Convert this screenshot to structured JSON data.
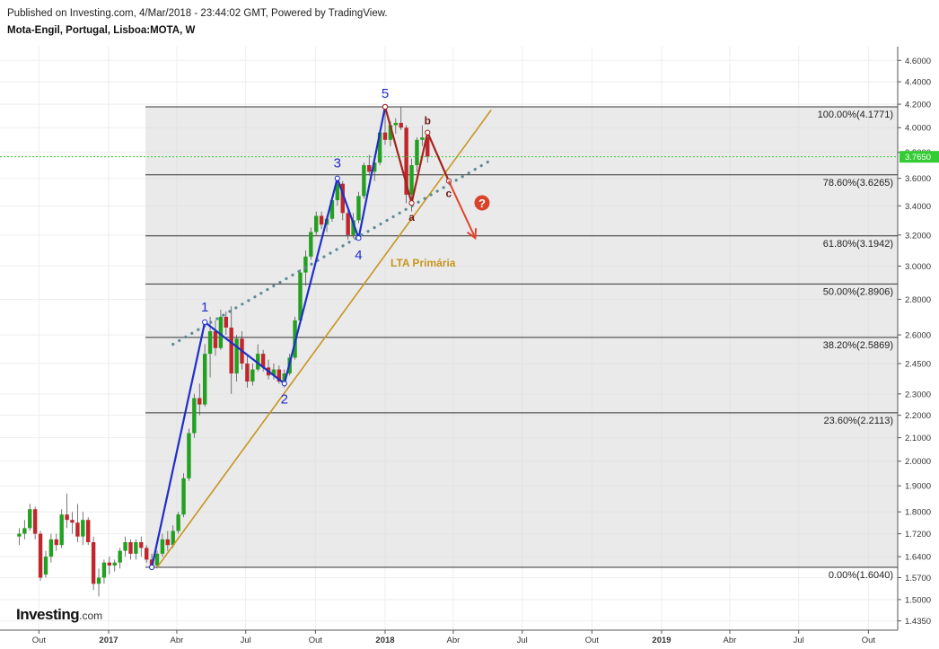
{
  "header": {
    "published": "Published on Investing.com, 4/Mar/2018 - 23:44:02 GMT, Powered by TradingView.",
    "symbol": "Mota-Engil, Portugal, Lisboa:MOTA, W"
  },
  "logo": {
    "main": "Investing",
    "suffix": ".com"
  },
  "chart_data": {
    "type": "candlestick",
    "title": "Mota-Engil, Portugal, Lisboa:MOTA, W",
    "y_axis": {
      "scale": "log",
      "ticks": [
        "4.6000",
        "4.4000",
        "4.2000",
        "4.0000",
        "3.8000",
        "3.6000",
        "3.4000",
        "3.2000",
        "3.0000",
        "2.8000",
        "2.6000",
        "2.4500",
        "2.3000",
        "2.2000",
        "2.1000",
        "2.0000",
        "1.9000",
        "1.8000",
        "1.7200",
        "1.6400",
        "1.5700",
        "1.5000",
        "1.4350"
      ],
      "current_price": "3.7650"
    },
    "x_axis": {
      "ticks": [
        "Out",
        "2017",
        "Abr",
        "Jul",
        "Out",
        "2018",
        "Abr",
        "Jul",
        "Out",
        "2019",
        "Abr",
        "Jul",
        "Out"
      ]
    },
    "fibonacci": [
      {
        "label": "100.00%(4.1771)",
        "value": 4.1771
      },
      {
        "label": "78.60%(3.6265)",
        "value": 3.6265
      },
      {
        "label": "61.80%(3.1942)",
        "value": 3.1942
      },
      {
        "label": "50.00%(2.8906)",
        "value": 2.8906
      },
      {
        "label": "38.20%(2.5869)",
        "value": 2.5869
      },
      {
        "label": "23.60%(2.2113)",
        "value": 2.2113
      },
      {
        "label": "0.00%(1.6040)",
        "value": 1.604
      }
    ],
    "elliott_impulse": [
      {
        "label": "",
        "x": "2017-02-27",
        "y": 1.604
      },
      {
        "label": "1",
        "x": "2017-05-08",
        "y": 2.67
      },
      {
        "label": "2",
        "x": "2017-08-21",
        "y": 2.35
      },
      {
        "label": "3",
        "x": "2017-10-30",
        "y": 3.6
      },
      {
        "label": "4",
        "x": "2017-11-27",
        "y": 3.18
      },
      {
        "label": "5",
        "x": "2018-01-01",
        "y": 4.1771
      }
    ],
    "elliott_correction": [
      {
        "label": "",
        "x": "2018-01-01",
        "y": 4.1771
      },
      {
        "label": "a",
        "x": "2018-02-05",
        "y": 3.42
      },
      {
        "label": "b",
        "x": "2018-02-26",
        "y": 3.96
      },
      {
        "label": "c",
        "x": "2018-03-26",
        "y": 3.58
      }
    ],
    "projection_arrow": [
      {
        "x": "2018-03-26",
        "y": 3.58
      },
      {
        "x": "2018-04-30",
        "y": 3.18
      }
    ],
    "question_mark": "?",
    "trendline_primary": {
      "label": "LTA Primária",
      "points": [
        {
          "x": "2017-03-06",
          "y": 1.604
        },
        {
          "x": "2018-05-21",
          "y": 4.15
        }
      ]
    },
    "trendline_dotted": {
      "points": [
        {
          "x": "2017-03-27",
          "y": 2.55
        },
        {
          "x": "2018-05-21",
          "y": 3.74
        }
      ]
    },
    "candles": [
      {
        "d": "2016-09-05",
        "o": 1.71,
        "h": 1.74,
        "l": 1.68,
        "c": 1.72
      },
      {
        "d": "2016-09-12",
        "o": 1.72,
        "h": 1.77,
        "l": 1.7,
        "c": 1.74
      },
      {
        "d": "2016-09-19",
        "o": 1.74,
        "h": 1.83,
        "l": 1.73,
        "c": 1.81
      },
      {
        "d": "2016-09-26",
        "o": 1.81,
        "h": 1.82,
        "l": 1.7,
        "c": 1.72
      },
      {
        "d": "2016-10-03",
        "o": 1.72,
        "h": 1.73,
        "l": 1.56,
        "c": 1.57
      },
      {
        "d": "2016-10-10",
        "o": 1.58,
        "h": 1.66,
        "l": 1.57,
        "c": 1.64
      },
      {
        "d": "2016-10-17",
        "o": 1.64,
        "h": 1.72,
        "l": 1.62,
        "c": 1.7
      },
      {
        "d": "2016-10-24",
        "o": 1.7,
        "h": 1.72,
        "l": 1.66,
        "c": 1.68
      },
      {
        "d": "2016-10-31",
        "o": 1.68,
        "h": 1.81,
        "l": 1.67,
        "c": 1.79
      },
      {
        "d": "2016-11-07",
        "o": 1.79,
        "h": 1.87,
        "l": 1.74,
        "c": 1.77
      },
      {
        "d": "2016-11-14",
        "o": 1.77,
        "h": 1.8,
        "l": 1.72,
        "c": 1.76
      },
      {
        "d": "2016-11-21",
        "o": 1.76,
        "h": 1.83,
        "l": 1.69,
        "c": 1.71
      },
      {
        "d": "2016-11-28",
        "o": 1.71,
        "h": 1.8,
        "l": 1.68,
        "c": 1.77
      },
      {
        "d": "2016-12-05",
        "o": 1.77,
        "h": 1.78,
        "l": 1.68,
        "c": 1.69
      },
      {
        "d": "2016-12-12",
        "o": 1.69,
        "h": 1.71,
        "l": 1.53,
        "c": 1.55
      },
      {
        "d": "2016-12-19",
        "o": 1.55,
        "h": 1.6,
        "l": 1.51,
        "c": 1.57
      },
      {
        "d": "2016-12-26",
        "o": 1.57,
        "h": 1.63,
        "l": 1.55,
        "c": 1.62
      },
      {
        "d": "2017-01-02",
        "o": 1.62,
        "h": 1.64,
        "l": 1.58,
        "c": 1.61
      },
      {
        "d": "2017-01-09",
        "o": 1.61,
        "h": 1.63,
        "l": 1.59,
        "c": 1.62
      },
      {
        "d": "2017-01-16",
        "o": 1.62,
        "h": 1.67,
        "l": 1.6,
        "c": 1.66
      },
      {
        "d": "2017-01-23",
        "o": 1.66,
        "h": 1.71,
        "l": 1.64,
        "c": 1.69
      },
      {
        "d": "2017-01-30",
        "o": 1.69,
        "h": 1.7,
        "l": 1.63,
        "c": 1.65
      },
      {
        "d": "2017-02-06",
        "o": 1.65,
        "h": 1.7,
        "l": 1.63,
        "c": 1.69
      },
      {
        "d": "2017-02-13",
        "o": 1.69,
        "h": 1.71,
        "l": 1.64,
        "c": 1.67
      },
      {
        "d": "2017-02-20",
        "o": 1.67,
        "h": 1.68,
        "l": 1.62,
        "c": 1.63
      },
      {
        "d": "2017-02-27",
        "o": 1.63,
        "h": 1.65,
        "l": 1.6,
        "c": 1.61
      },
      {
        "d": "2017-03-06",
        "o": 1.61,
        "h": 1.66,
        "l": 1.6,
        "c": 1.65
      },
      {
        "d": "2017-03-13",
        "o": 1.65,
        "h": 1.72,
        "l": 1.64,
        "c": 1.7
      },
      {
        "d": "2017-03-20",
        "o": 1.7,
        "h": 1.73,
        "l": 1.66,
        "c": 1.68
      },
      {
        "d": "2017-03-27",
        "o": 1.68,
        "h": 1.75,
        "l": 1.67,
        "c": 1.73
      },
      {
        "d": "2017-04-03",
        "o": 1.73,
        "h": 1.8,
        "l": 1.72,
        "c": 1.79
      },
      {
        "d": "2017-04-10",
        "o": 1.79,
        "h": 1.95,
        "l": 1.78,
        "c": 1.93
      },
      {
        "d": "2017-04-17",
        "o": 1.93,
        "h": 2.14,
        "l": 1.92,
        "c": 2.12
      },
      {
        "d": "2017-04-24",
        "o": 2.12,
        "h": 2.3,
        "l": 2.1,
        "c": 2.28
      },
      {
        "d": "2017-05-01",
        "o": 2.28,
        "h": 2.35,
        "l": 2.2,
        "c": 2.25
      },
      {
        "d": "2017-05-08",
        "o": 2.25,
        "h": 2.55,
        "l": 2.24,
        "c": 2.5
      },
      {
        "d": "2017-05-15",
        "o": 2.5,
        "h": 2.7,
        "l": 2.38,
        "c": 2.62
      },
      {
        "d": "2017-05-22",
        "o": 2.62,
        "h": 2.68,
        "l": 2.49,
        "c": 2.53
      },
      {
        "d": "2017-05-29",
        "o": 2.53,
        "h": 2.74,
        "l": 2.52,
        "c": 2.7
      },
      {
        "d": "2017-06-05",
        "o": 2.7,
        "h": 2.73,
        "l": 2.6,
        "c": 2.64
      },
      {
        "d": "2017-06-12",
        "o": 2.64,
        "h": 2.76,
        "l": 2.3,
        "c": 2.4
      },
      {
        "d": "2017-06-19",
        "o": 2.4,
        "h": 2.6,
        "l": 2.36,
        "c": 2.58
      },
      {
        "d": "2017-06-26",
        "o": 2.58,
        "h": 2.62,
        "l": 2.42,
        "c": 2.45
      },
      {
        "d": "2017-07-03",
        "o": 2.45,
        "h": 2.5,
        "l": 2.33,
        "c": 2.36
      },
      {
        "d": "2017-07-10",
        "o": 2.36,
        "h": 2.45,
        "l": 2.34,
        "c": 2.42
      },
      {
        "d": "2017-07-17",
        "o": 2.42,
        "h": 2.55,
        "l": 2.41,
        "c": 2.5
      },
      {
        "d": "2017-07-24",
        "o": 2.5,
        "h": 2.52,
        "l": 2.41,
        "c": 2.43
      },
      {
        "d": "2017-07-31",
        "o": 2.43,
        "h": 2.47,
        "l": 2.37,
        "c": 2.39
      },
      {
        "d": "2017-08-07",
        "o": 2.39,
        "h": 2.45,
        "l": 2.37,
        "c": 2.42
      },
      {
        "d": "2017-08-14",
        "o": 2.42,
        "h": 2.44,
        "l": 2.35,
        "c": 2.36
      },
      {
        "d": "2017-08-21",
        "o": 2.36,
        "h": 2.42,
        "l": 2.33,
        "c": 2.4
      },
      {
        "d": "2017-08-28",
        "o": 2.4,
        "h": 2.5,
        "l": 2.39,
        "c": 2.48
      },
      {
        "d": "2017-09-04",
        "o": 2.48,
        "h": 2.7,
        "l": 2.47,
        "c": 2.68
      },
      {
        "d": "2017-09-11",
        "o": 2.68,
        "h": 2.98,
        "l": 2.66,
        "c": 2.96
      },
      {
        "d": "2017-09-18",
        "o": 2.96,
        "h": 3.1,
        "l": 2.88,
        "c": 3.06
      },
      {
        "d": "2017-09-25",
        "o": 3.06,
        "h": 3.25,
        "l": 3.04,
        "c": 3.22
      },
      {
        "d": "2017-10-02",
        "o": 3.22,
        "h": 3.36,
        "l": 3.2,
        "c": 3.33
      },
      {
        "d": "2017-10-09",
        "o": 3.33,
        "h": 3.36,
        "l": 3.24,
        "c": 3.27
      },
      {
        "d": "2017-10-16",
        "o": 3.27,
        "h": 3.33,
        "l": 3.22,
        "c": 3.31
      },
      {
        "d": "2017-10-23",
        "o": 3.31,
        "h": 3.46,
        "l": 3.29,
        "c": 3.44
      },
      {
        "d": "2017-10-30",
        "o": 3.44,
        "h": 3.62,
        "l": 3.4,
        "c": 3.56
      },
      {
        "d": "2017-11-06",
        "o": 3.56,
        "h": 3.58,
        "l": 3.3,
        "c": 3.35
      },
      {
        "d": "2017-11-13",
        "o": 3.35,
        "h": 3.37,
        "l": 3.17,
        "c": 3.2
      },
      {
        "d": "2017-11-20",
        "o": 3.2,
        "h": 3.35,
        "l": 3.18,
        "c": 3.3
      },
      {
        "d": "2017-11-27",
        "o": 3.3,
        "h": 3.5,
        "l": 3.28,
        "c": 3.47
      },
      {
        "d": "2017-12-04",
        "o": 3.47,
        "h": 3.72,
        "l": 3.45,
        "c": 3.7
      },
      {
        "d": "2017-12-11",
        "o": 3.7,
        "h": 3.78,
        "l": 3.62,
        "c": 3.65
      },
      {
        "d": "2017-12-18",
        "o": 3.65,
        "h": 3.74,
        "l": 3.58,
        "c": 3.72
      },
      {
        "d": "2017-12-25",
        "o": 3.72,
        "h": 3.98,
        "l": 3.7,
        "c": 3.96
      },
      {
        "d": "2018-01-01",
        "o": 3.96,
        "h": 4.18,
        "l": 3.86,
        "c": 3.9
      },
      {
        "d": "2018-01-08",
        "o": 3.9,
        "h": 4.05,
        "l": 3.85,
        "c": 4.02
      },
      {
        "d": "2018-01-15",
        "o": 4.02,
        "h": 4.08,
        "l": 3.95,
        "c": 4.04
      },
      {
        "d": "2018-01-22",
        "o": 4.04,
        "h": 4.18,
        "l": 3.98,
        "c": 4.0
      },
      {
        "d": "2018-01-29",
        "o": 4.0,
        "h": 4.02,
        "l": 3.42,
        "c": 3.48
      },
      {
        "d": "2018-02-05",
        "o": 3.48,
        "h": 3.75,
        "l": 3.36,
        "c": 3.7
      },
      {
        "d": "2018-02-12",
        "o": 3.7,
        "h": 3.92,
        "l": 3.65,
        "c": 3.9
      },
      {
        "d": "2018-02-19",
        "o": 3.9,
        "h": 4.02,
        "l": 3.85,
        "c": 3.92
      },
      {
        "d": "2018-02-26",
        "o": 3.92,
        "h": 3.96,
        "l": 3.72,
        "c": 3.765
      }
    ]
  }
}
